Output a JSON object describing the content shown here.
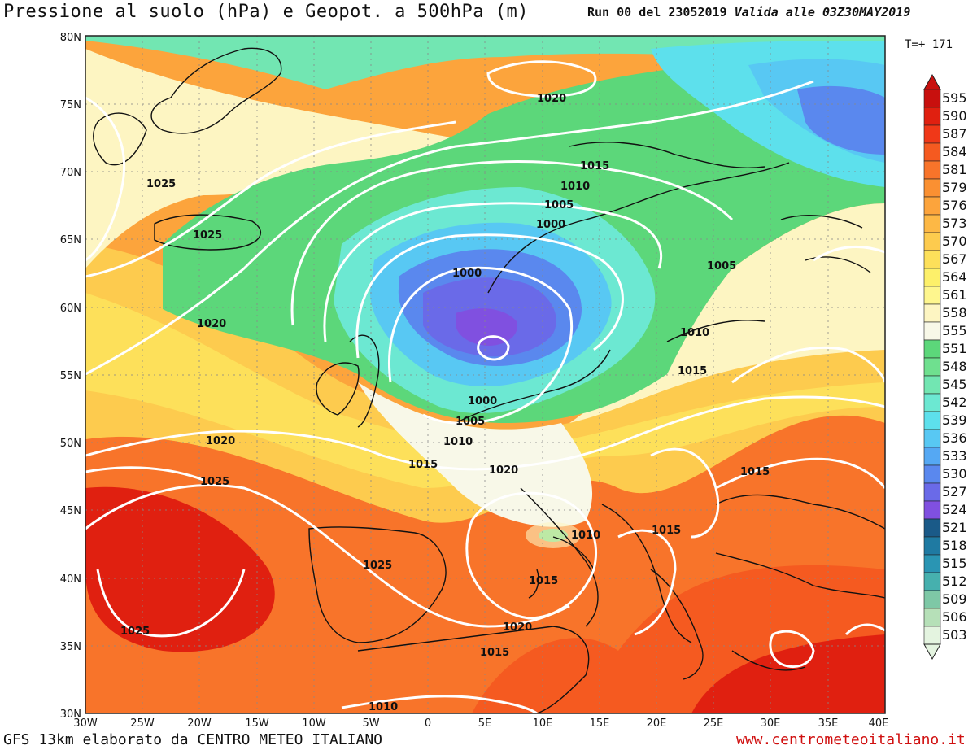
{
  "header": {
    "title": "Pressione al suolo (hPa) e Geopot. a 500hPa (m)",
    "run_prefix": "Run 00 del 23052019",
    "valid": "Valida alle 03Z30MAY2019",
    "timestep": "T=+ 171"
  },
  "footer": {
    "model": "GFS 13km elaborato da CENTRO METEO ITALIANO",
    "website": "www.centrometeoitaliano.it"
  },
  "map": {
    "lat_labels": [
      "80N",
      "75N",
      "70N",
      "65N",
      "60N",
      "55N",
      "50N",
      "45N",
      "40N",
      "35N",
      "30N"
    ],
    "lon_labels": [
      "30W",
      "25W",
      "20W",
      "15W",
      "10W",
      "5W",
      "0",
      "5E",
      "10E",
      "15E",
      "20E",
      "25E",
      "30E",
      "35E",
      "40E"
    ],
    "isobar_labels": [
      "1020",
      "1025",
      "1025",
      "1020",
      "1015",
      "1010",
      "1005",
      "1000",
      "1000",
      "1005",
      "1010",
      "1015",
      "1020",
      "1000",
      "1005",
      "1010",
      "1015",
      "1020",
      "1025",
      "1015",
      "1010",
      "1015",
      "1015",
      "1025",
      "1025",
      "1020",
      "1015",
      "1010",
      "1005",
      "1010",
      "1015"
    ]
  },
  "colorbar": {
    "values": [
      "595",
      "590",
      "587",
      "584",
      "581",
      "579",
      "576",
      "573",
      "570",
      "567",
      "564",
      "561",
      "558",
      "555",
      "551",
      "548",
      "545",
      "542",
      "539",
      "536",
      "533",
      "530",
      "527",
      "524",
      "521",
      "518",
      "515",
      "512",
      "509",
      "506",
      "503"
    ],
    "colors": [
      "#c8100e",
      "#e02010",
      "#f03818",
      "#f55a20",
      "#f8742a",
      "#fa9032",
      "#fca43c",
      "#fdb845",
      "#fdcb4e",
      "#fde05a",
      "#fdf06a",
      "#fef68e",
      "#fdf5c2",
      "#f8f8e8",
      "#5cd77a",
      "#6fe08f",
      "#72e6b2",
      "#6ce8d2",
      "#5de0ec",
      "#58c8f3",
      "#55a8f3",
      "#5a88ee",
      "#6a6ae8",
      "#8050e0",
      "#1a5a88",
      "#1f7aa2",
      "#2a95b3",
      "#46b0ae",
      "#7ec8a6",
      "#b6e0b8",
      "#e4f4e0"
    ]
  }
}
